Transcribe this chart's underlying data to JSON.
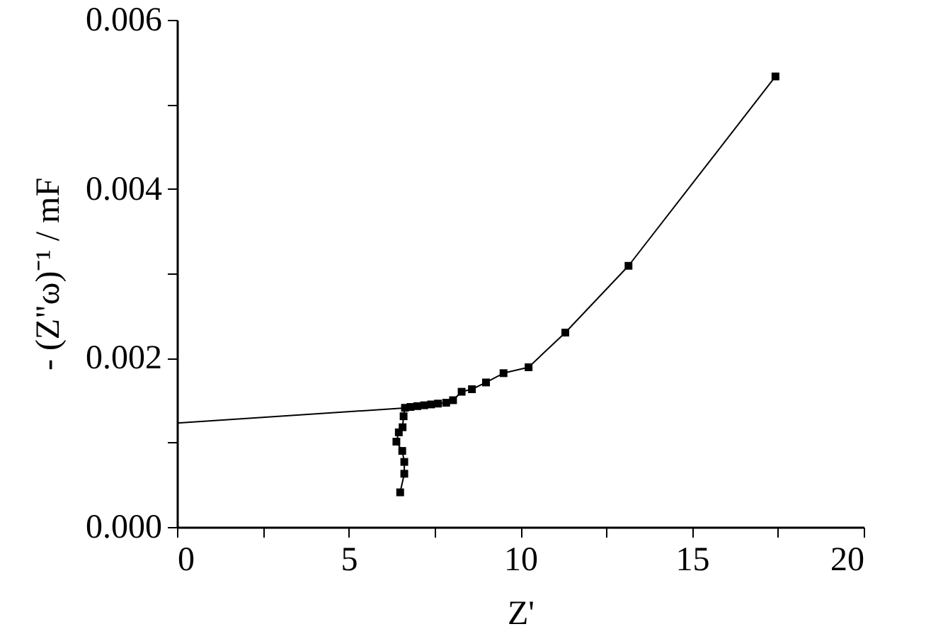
{
  "chart_data": {
    "type": "line",
    "xlabel": "Z'",
    "ylabel": "- (Z\"ω)⁻¹ / mF",
    "xlim": [
      0,
      20
    ],
    "ylim": [
      0,
      0.006
    ],
    "xticks": [
      0,
      {
        "value": 2.5,
        "label": null
      },
      5,
      {
        "value": 7.5,
        "label": null
      },
      10,
      {
        "value": 12.5,
        "label": null
      },
      15,
      {
        "value": 17.5,
        "label": null
      },
      20
    ],
    "yticks": [
      {
        "value": 0,
        "label": "0.000"
      },
      {
        "value": 0.001,
        "label": null
      },
      {
        "value": 0.002,
        "label": "0.002"
      },
      {
        "value": 0.003,
        "label": null
      },
      {
        "value": 0.004,
        "label": "0.004"
      },
      {
        "value": 0.005,
        "label": null
      },
      {
        "value": 0.006,
        "label": "0.006"
      }
    ],
    "grid": false,
    "series": [
      {
        "type": "line",
        "color": "#000000",
        "marker": "square",
        "line_style": "solid",
        "x": [
          6.5,
          6.62,
          6.62,
          6.56,
          6.39,
          6.46,
          6.57,
          6.6,
          6.64,
          6.8,
          7.0,
          7.2,
          7.4,
          7.6,
          7.84,
          8.04,
          8.29,
          8.59,
          9.0,
          9.51,
          10.24,
          11.31,
          13.15,
          17.43
        ],
        "values": [
          0.00041,
          0.00063,
          0.00077,
          0.0009,
          0.00101,
          0.00112,
          0.00118,
          0.00131,
          0.00141,
          0.00142,
          0.00143,
          0.00144,
          0.00145,
          0.00146,
          0.00147,
          0.0015,
          0.0016,
          0.00163,
          0.00171,
          0.00182,
          0.00189,
          0.0023,
          0.00309,
          0.00533
        ]
      },
      {
        "type": "line",
        "color": "#000000",
        "line_style": "solid",
        "x": [
          0,
          6.7
        ],
        "values": [
          0.00123,
          0.00141
        ]
      }
    ]
  }
}
